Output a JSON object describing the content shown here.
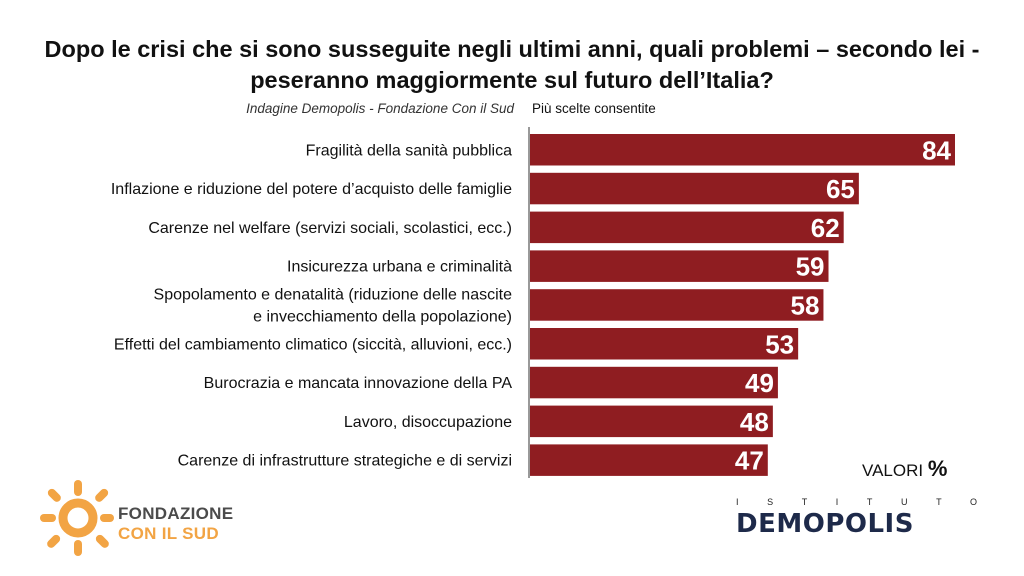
{
  "title": "Dopo le crisi che si sono susseguite negli ultimi anni, quali problemi – secondo lei - peseranno maggiormente sul futuro dell’Italia?",
  "source": "Indagine Demopolis - Fondazione Con il Sud",
  "note": "Più scelte consentite",
  "units": {
    "label": "VALORI",
    "symbol": "%"
  },
  "logos": {
    "left": {
      "line1": "FONDAZIONE",
      "line2": "CON IL SUD"
    },
    "right": {
      "spaced": "ISTITUTO",
      "word": "DEMOPOLIS"
    }
  },
  "colors": {
    "bar": "#8f1d21",
    "sun": "#f2a444"
  },
  "chart_data": {
    "type": "bar",
    "orientation": "horizontal",
    "categories": [
      "Fragilità della sanità pubblica",
      "Inflazione e riduzione del potere d’acquisto delle famiglie",
      "Carenze nel welfare (servizi sociali, scolastici, ecc.)",
      "Insicurezza urbana e criminalità",
      [
        "Spopolamento e denatalità (riduzione delle nascite",
        "e invecchiamento della popolazione)"
      ],
      "Effetti del cambiamento climatico (siccità, alluvioni, ecc.)",
      "Burocrazia e mancata innovazione della PA",
      "Lavoro, disoccupazione",
      "Carenze di infrastrutture strategiche e di servizi"
    ],
    "values": [
      84,
      65,
      62,
      59,
      58,
      53,
      49,
      48,
      47
    ],
    "data_labels": [
      "84",
      "65",
      "62",
      "59",
      "58",
      "53",
      "49",
      "48",
      "47"
    ],
    "xlim": [
      0,
      84
    ],
    "grid": false,
    "legend": "none"
  }
}
